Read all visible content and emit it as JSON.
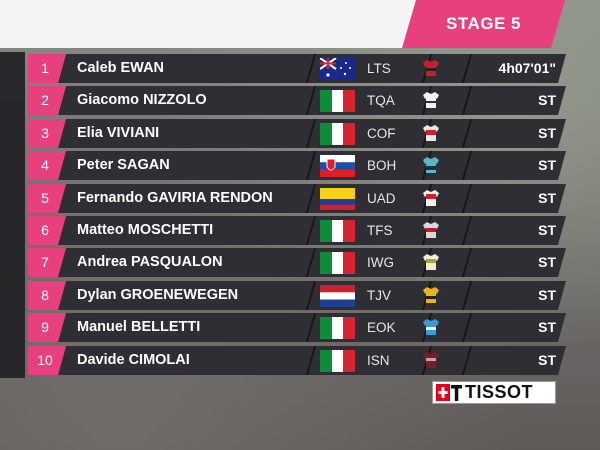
{
  "header": {
    "title": "STAGE 5"
  },
  "table": {
    "rows": [
      [
        1,
        "Caleb EWAN",
        "LTS",
        "4h07'01\""
      ],
      [
        2,
        "Giacomo NIZZOLO",
        "TQA",
        "ST"
      ],
      [
        3,
        "Elia VIVIANI",
        "COF",
        "ST"
      ],
      [
        4,
        "Peter SAGAN",
        "BOH",
        "ST"
      ],
      [
        5,
        "Fernando GAVIRIA RENDON",
        "UAD",
        "ST"
      ],
      [
        6,
        "Matteo MOSCHETTI",
        "TFS",
        "ST"
      ],
      [
        7,
        "Andrea PASQUALON",
        "IWG",
        "ST"
      ],
      [
        8,
        "Dylan GROENEWEGEN",
        "TJV",
        "ST"
      ],
      [
        9,
        "Manuel BELLETTI",
        "EOK",
        "ST"
      ],
      [
        10,
        "Davide CIMOLAI",
        "ISN",
        "ST"
      ]
    ]
  },
  "logo": {
    "text": "TISSOT"
  }
}
